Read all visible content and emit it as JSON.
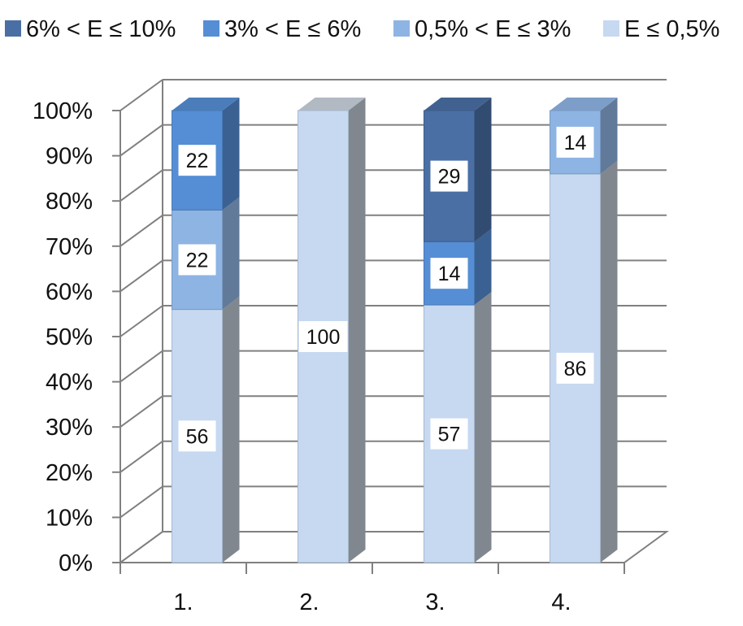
{
  "chart_data": {
    "type": "bar",
    "stacked": true,
    "percent_stacked": true,
    "three_d": true,
    "title": "",
    "xlabel": "",
    "ylabel": "",
    "categories": [
      "1.",
      "2.",
      "3.",
      "4."
    ],
    "ylim": [
      0,
      100
    ],
    "yticks": [
      "0%",
      "10%",
      "20%",
      "30%",
      "40%",
      "50%",
      "60%",
      "70%",
      "80%",
      "90%",
      "100%"
    ],
    "grid": true,
    "legend_position": "top",
    "series": [
      {
        "name": "E ≤ 0,5%",
        "values": [
          56,
          100,
          57,
          86
        ],
        "color": "#c6d9f1"
      },
      {
        "name": "0,5% < E ≤ 3%",
        "values": [
          22,
          0,
          0,
          14
        ],
        "color": "#8eb4e3"
      },
      {
        "name": "3% < E ≤ 6%",
        "values": [
          22,
          0,
          14,
          0
        ],
        "color": "#558ed5"
      },
      {
        "name": "6% < E ≤ 10%",
        "values": [
          0,
          0,
          29,
          0
        ],
        "color": "#4a6fa5"
      }
    ],
    "legend_order": [
      3,
      2,
      1,
      0
    ]
  }
}
